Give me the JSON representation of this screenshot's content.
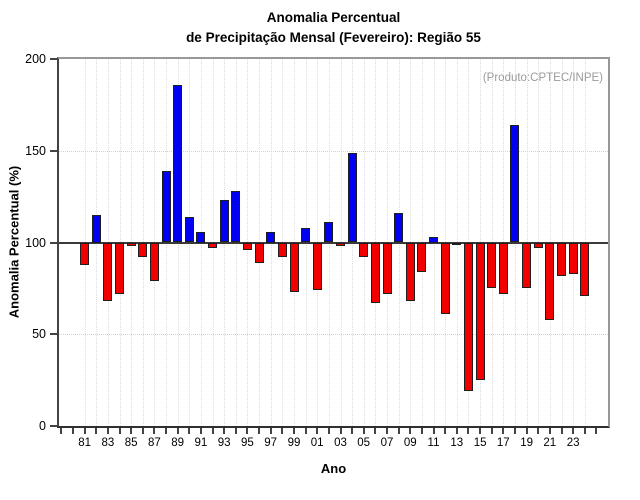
{
  "title": {
    "line1": "Anomalia Percentual",
    "line2": "de Precipitação Mensal (Fevereiro): Região 55"
  },
  "annotation": {
    "text": "(Produto:CPTEC/INPE)"
  },
  "axes": {
    "x_title": "Ano",
    "y_title": "Anomalia Percentual (%)"
  },
  "colors": {
    "above_baseline": "#0000f2",
    "below_baseline": "#f20000",
    "bar_border": "#1f1f1f",
    "annotation_gray": "#9b9b9b"
  },
  "chart_data": {
    "type": "bar",
    "title": "Anomalia Percentual de Precipitação Mensal (Fevereiro): Região 55",
    "xlabel": "Ano",
    "ylabel": "Anomalia Percentual (%)",
    "ylim": [
      0,
      200
    ],
    "y_ticks": [
      0,
      50,
      100,
      150,
      200
    ],
    "baseline": 100,
    "grid_y": [
      50,
      150
    ],
    "legend_position": "none",
    "grid": "dotted",
    "years": [
      1981,
      1982,
      1983,
      1984,
      1985,
      1986,
      1987,
      1988,
      1989,
      1990,
      1991,
      1992,
      1993,
      1994,
      1995,
      1996,
      1997,
      1998,
      1999,
      2000,
      2001,
      2002,
      2003,
      2004,
      2005,
      2006,
      2007,
      2008,
      2009,
      2010,
      2011,
      2012,
      2013,
      2014,
      2015,
      2016,
      2017,
      2018,
      2019,
      2020,
      2021,
      2022,
      2023,
      2024
    ],
    "values": [
      88,
      115,
      68,
      72,
      98,
      92,
      79,
      139,
      186,
      114,
      106,
      97,
      123,
      128,
      96,
      89,
      106,
      92,
      73,
      108,
      74,
      111,
      98,
      149,
      92,
      67,
      72,
      116,
      68,
      84,
      103,
      61,
      99,
      19,
      25,
      75,
      72,
      164,
      75,
      97,
      58,
      82,
      83,
      71
    ],
    "x_tick_years": [
      1981,
      1983,
      1985,
      1987,
      1989,
      1991,
      1993,
      1995,
      1997,
      1999,
      2001,
      2003,
      2005,
      2007,
      2009,
      2011,
      2013,
      2015,
      2017,
      2019,
      2021,
      2023
    ],
    "x_tick_labels": [
      "81",
      "83",
      "85",
      "87",
      "89",
      "91",
      "93",
      "95",
      "97",
      "99",
      "01",
      "03",
      "05",
      "07",
      "09",
      "11",
      "13",
      "15",
      "17",
      "19",
      "21",
      "23"
    ],
    "x_minor_tick_years_range": [
      1979,
      2025
    ]
  }
}
